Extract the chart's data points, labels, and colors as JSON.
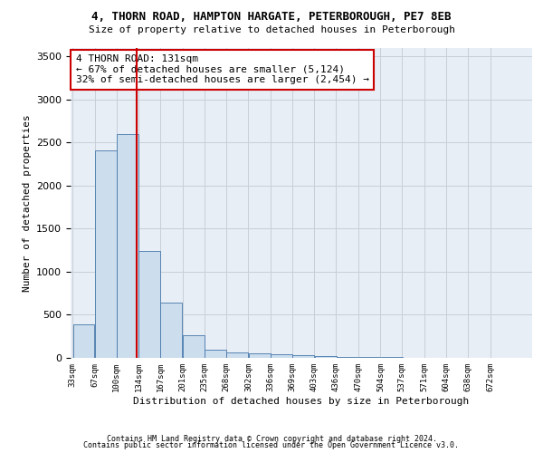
{
  "title": "4, THORN ROAD, HAMPTON HARGATE, PETERBOROUGH, PE7 8EB",
  "subtitle": "Size of property relative to detached houses in Peterborough",
  "xlabel": "Distribution of detached houses by size in Peterborough",
  "ylabel": "Number of detached properties",
  "bar_color": "#ccdded",
  "bar_edge_color": "#4477aa",
  "vline_x": 131,
  "vline_color": "#cc0000",
  "annotation_title": "4 THORN ROAD: 131sqm",
  "annotation_line1": "← 67% of detached houses are smaller (5,124)",
  "annotation_line2": "32% of semi-detached houses are larger (2,454) →",
  "footnote1": "Contains HM Land Registry data © Crown copyright and database right 2024.",
  "footnote2": "Contains public sector information licensed under the Open Government Licence v3.0.",
  "ylim": [
    0,
    3600
  ],
  "bin_edges": [
    33,
    67,
    100,
    134,
    167,
    201,
    235,
    268,
    302,
    336,
    369,
    403,
    436,
    470,
    504,
    537,
    571,
    604,
    638,
    672,
    705
  ],
  "bar_heights": [
    390,
    2410,
    2600,
    1240,
    640,
    260,
    90,
    60,
    55,
    45,
    30,
    20,
    15,
    10,
    8,
    5,
    4,
    3,
    2,
    2
  ],
  "background_color": "#e8eef5",
  "grid_color": "#c8cfd8"
}
